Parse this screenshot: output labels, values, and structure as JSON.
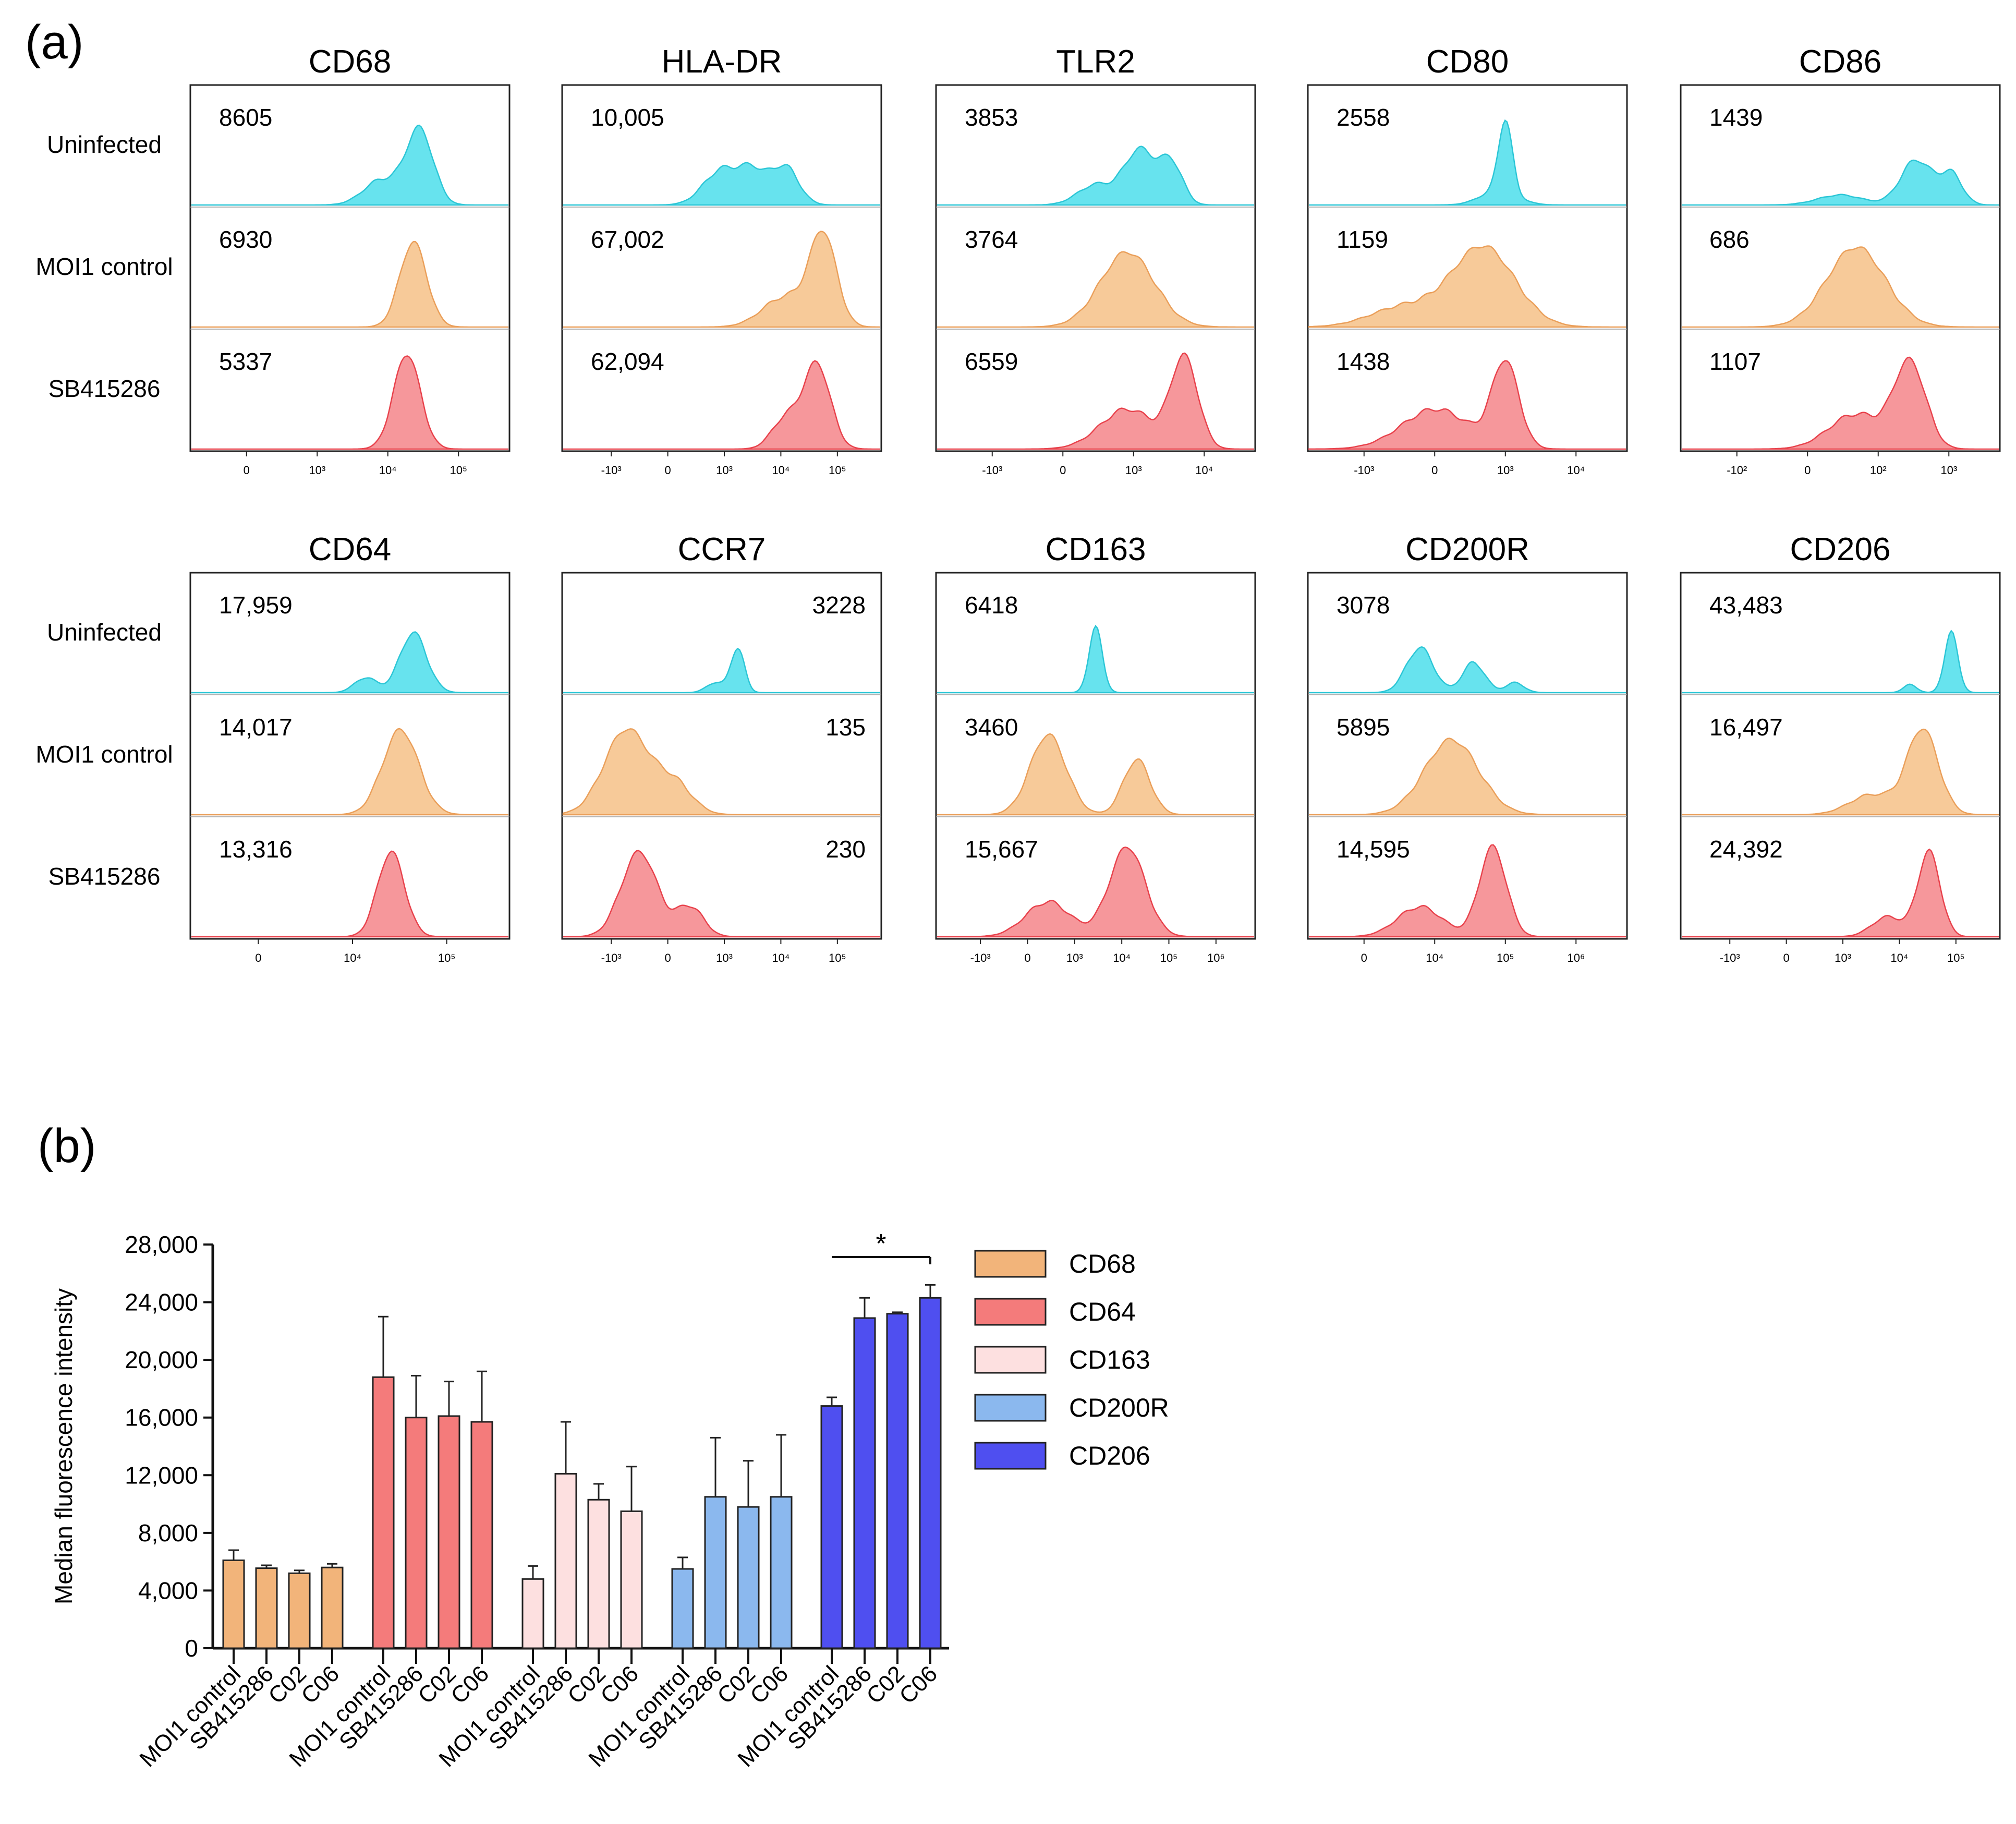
{
  "panel_a_label": "(a)",
  "panel_b_label": "(b)",
  "colors": {
    "uninfected": "#56e0ec",
    "moi1": "#f6c48e",
    "sb": "#f58c90"
  },
  "row_labels": [
    "Uninfected",
    "MOI1 control",
    "SB415286"
  ],
  "chart_data": [
    {
      "type": "histogram_panels",
      "panels": [
        {
          "marker": "CD68",
          "values": [
            "8605",
            "6930",
            "5337"
          ],
          "ticks": [
            "0",
            "10³",
            "10⁴",
            "10⁵"
          ]
        },
        {
          "marker": "HLA-DR",
          "values": [
            "10,005",
            "67,002",
            "62,094"
          ],
          "ticks": [
            "-10³",
            "0",
            "10³",
            "10⁴",
            "10⁵"
          ]
        },
        {
          "marker": "TLR2",
          "values": [
            "3853",
            "3764",
            "6559"
          ],
          "ticks": [
            "-10³",
            "0",
            "10³",
            "10⁴"
          ]
        },
        {
          "marker": "CD80",
          "values": [
            "2558",
            "1159",
            "1438"
          ],
          "ticks": [
            "-10³",
            "0",
            "10³",
            "10⁴"
          ]
        },
        {
          "marker": "CD86",
          "values": [
            "1439",
            "686",
            "1107"
          ],
          "ticks": [
            "-10²",
            "0",
            "10²",
            "10³"
          ]
        },
        {
          "marker": "CD64",
          "values": [
            "17,959",
            "14,017",
            "13,316"
          ],
          "ticks": [
            "0",
            "10⁴",
            "10⁵"
          ]
        },
        {
          "marker": "CCR7",
          "values": [
            "3228",
            "135",
            "230"
          ],
          "ticks": [
            "-10³",
            "0",
            "10³",
            "10⁴",
            "10⁵"
          ]
        },
        {
          "marker": "CD163",
          "values": [
            "6418",
            "3460",
            "15,667"
          ],
          "ticks": [
            "-10³",
            "0",
            "10³",
            "10⁴",
            "10⁵",
            "10⁶"
          ]
        },
        {
          "marker": "CD200R",
          "values": [
            "3078",
            "5895",
            "14,595"
          ],
          "ticks": [
            "0",
            "10⁴",
            "10⁵",
            "10⁶"
          ]
        },
        {
          "marker": "CD206",
          "values": [
            "43,483",
            "16,497",
            "24,392"
          ],
          "ticks": [
            "-10³",
            "0",
            "10³",
            "10⁴",
            "10⁵"
          ]
        }
      ]
    },
    {
      "type": "bar",
      "ylabel": "Median fluorescence intensity",
      "ylim": [
        0,
        28000
      ],
      "yticks": [
        "0",
        "4,000",
        "8,000",
        "12,000",
        "16,000",
        "20,000",
        "24,000",
        "28,000"
      ],
      "categories": [
        "MOI1 control",
        "SB415286",
        "C02",
        "C06"
      ],
      "series": [
        {
          "name": "CD68",
          "color": "#f2b47a",
          "values": [
            6100,
            5550,
            5200,
            5600
          ],
          "errors": [
            700,
            200,
            200,
            250
          ]
        },
        {
          "name": "CD64",
          "color": "#f47b7b",
          "values": [
            18800,
            16000,
            16100,
            15700
          ],
          "errors": [
            4200,
            2900,
            2400,
            3500
          ]
        },
        {
          "name": "CD163",
          "color": "#fde0e0",
          "values": [
            4800,
            12100,
            10300,
            9500
          ],
          "errors": [
            900,
            3600,
            1100,
            3100
          ]
        },
        {
          "name": "CD200R",
          "color": "#8bb8ee",
          "values": [
            5500,
            10500,
            9800,
            10500
          ],
          "errors": [
            800,
            4100,
            3200,
            4300
          ]
        },
        {
          "name": "CD206",
          "color": "#4f4ff0",
          "values": [
            16800,
            22900,
            23200,
            24300
          ],
          "errors": [
            600,
            1400,
            100,
            900
          ]
        }
      ],
      "significance": "*"
    }
  ]
}
